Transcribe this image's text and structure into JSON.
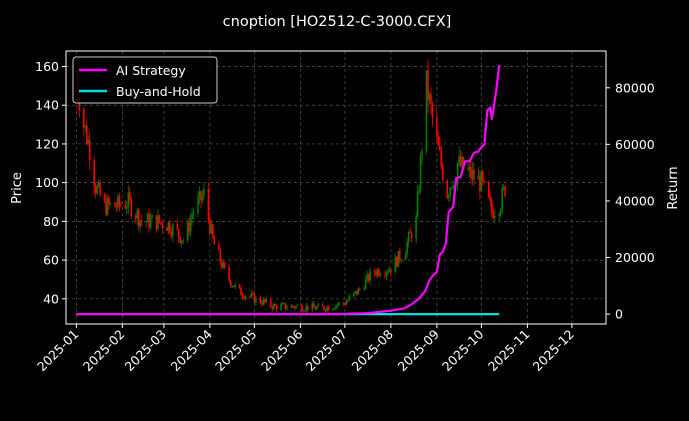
{
  "chart_data": {
    "type": "candlestick_line_dual_axis",
    "title": "cnoption [HO2512-C-3000.CFX]",
    "ylabel_left": "Price",
    "ylabel_right": "Return",
    "x_ticks": [
      "2025-01",
      "2025-02",
      "2025-03",
      "2025-04",
      "2025-05",
      "2025-06",
      "2025-07",
      "2025-08",
      "2025-09",
      "2025-10",
      "2025-11",
      "2025-12"
    ],
    "xlim": [
      "2024-12-25",
      "2025-12-24"
    ],
    "y_left_ticks": [
      40,
      60,
      80,
      100,
      120,
      140,
      160
    ],
    "y_left_range": [
      27,
      168
    ],
    "y_right_ticks": [
      0,
      20000,
      40000,
      60000,
      80000
    ],
    "y_right_range": [
      -3500,
      93000
    ],
    "legend": {
      "placement": "top-left",
      "entries": [
        "AI Strategy",
        "Buy-and-Hold"
      ]
    },
    "grid": true,
    "colors": {
      "up": "#008000",
      "down": "#ff0000",
      "ai_strategy": "#ff00ff",
      "buy_and_hold": "#00e0e0",
      "background": "#000000",
      "text": "#ffffff"
    },
    "price_anchors": [
      [
        "2025-01-01",
        155
      ],
      [
        "2025-01-06",
        130
      ],
      [
        "2025-01-10",
        118
      ],
      [
        "2025-01-14",
        98
      ],
      [
        "2025-01-20",
        88
      ],
      [
        "2025-01-28",
        88
      ],
      [
        "2025-02-05",
        90
      ],
      [
        "2025-02-14",
        80
      ],
      [
        "2025-02-25",
        80
      ],
      [
        "2025-03-05",
        78
      ],
      [
        "2025-03-15",
        70
      ],
      [
        "2025-03-20",
        84
      ],
      [
        "2025-03-28",
        94
      ],
      [
        "2025-04-03",
        70
      ],
      [
        "2025-04-12",
        52
      ],
      [
        "2025-04-20",
        44
      ],
      [
        "2025-05-01",
        40
      ],
      [
        "2025-05-15",
        36
      ],
      [
        "2025-06-01",
        36
      ],
      [
        "2025-06-15",
        35
      ],
      [
        "2025-07-01",
        38
      ],
      [
        "2025-07-10",
        44
      ],
      [
        "2025-07-20",
        54
      ],
      [
        "2025-08-01",
        56
      ],
      [
        "2025-08-10",
        65
      ],
      [
        "2025-08-18",
        80
      ],
      [
        "2025-08-25",
        150
      ],
      [
        "2025-09-01",
        120
      ],
      [
        "2025-09-08",
        95
      ],
      [
        "2025-09-15",
        110
      ],
      [
        "2025-09-22",
        105
      ],
      [
        "2025-10-01",
        100
      ],
      [
        "2025-10-08",
        85
      ],
      [
        "2025-10-14",
        90
      ],
      [
        "2025-10-18",
        100
      ]
    ],
    "ai_strategy": [
      [
        "2025-01-01",
        0
      ],
      [
        "2025-06-25",
        0
      ],
      [
        "2025-07-15",
        300
      ],
      [
        "2025-07-25",
        800
      ],
      [
        "2025-08-01",
        1200
      ],
      [
        "2025-08-10",
        2000
      ],
      [
        "2025-08-15",
        3500
      ],
      [
        "2025-08-20",
        5500
      ],
      [
        "2025-08-24",
        8000
      ],
      [
        "2025-08-27",
        12000
      ],
      [
        "2025-08-30",
        14000
      ],
      [
        "2025-09-01",
        15000
      ],
      [
        "2025-09-03",
        21000
      ],
      [
        "2025-09-05",
        22000
      ],
      [
        "2025-09-07",
        25000
      ],
      [
        "2025-09-09",
        36000
      ],
      [
        "2025-09-12",
        38000
      ],
      [
        "2025-09-14",
        48000
      ],
      [
        "2025-09-17",
        48500
      ],
      [
        "2025-09-20",
        54000
      ],
      [
        "2025-09-23",
        54000
      ],
      [
        "2025-09-26",
        57000
      ],
      [
        "2025-09-29",
        57500
      ],
      [
        "2025-10-01",
        59000
      ],
      [
        "2025-10-03",
        60000
      ],
      [
        "2025-10-05",
        72000
      ],
      [
        "2025-10-07",
        73000
      ],
      [
        "2025-10-08",
        69000
      ],
      [
        "2025-10-09",
        72000
      ],
      [
        "2025-10-11",
        79000
      ],
      [
        "2025-10-13",
        88000
      ]
    ],
    "buy_and_hold": [
      [
        "2025-01-01",
        0
      ],
      [
        "2025-10-13",
        0
      ]
    ]
  }
}
